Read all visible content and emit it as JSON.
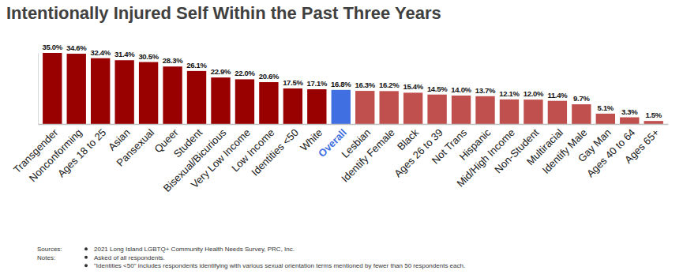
{
  "chart_data": {
    "type": "bar",
    "title": "Intentionally Injured Self Within the Past Three Years",
    "categories": [
      "Transgender",
      "Nonconforming",
      "Ages 18 to 25",
      "Asian",
      "Pansexual",
      "Queer",
      "Student",
      "Bisexual/Bicurious",
      "Very Low Income",
      "Low Income",
      "Identities <50",
      "White",
      "Overall",
      "Lesbian",
      "Identify Female",
      "Black",
      "Ages 26 to 39",
      "Not Trans",
      "Hispanic",
      "Mid/High Income",
      "Non-Student",
      "Multiracial",
      "Identify Male",
      "Gay Man",
      "Ages 40 to 64",
      "Ages 65+"
    ],
    "values": [
      35.0,
      34.6,
      32.4,
      31.4,
      30.5,
      28.3,
      26.1,
      22.9,
      22.0,
      20.6,
      17.5,
      17.1,
      16.8,
      16.3,
      16.2,
      15.4,
      14.5,
      14.0,
      13.7,
      12.1,
      12.0,
      11.4,
      9.7,
      5.1,
      3.3,
      1.5
    ],
    "value_labels": [
      "35.0%",
      "34.6%",
      "32.4%",
      "31.4%",
      "30.5%",
      "28.3%",
      "26.1%",
      "22.9%",
      "22.0%",
      "20.6%",
      "17.5%",
      "17.1%",
      "16.8%",
      "16.3%",
      "16.2%",
      "15.4%",
      "14.5%",
      "14.0%",
      "13.7%",
      "12.1%",
      "12.0%",
      "11.4%",
      "9.7%",
      "5.1%",
      "3.3%",
      "1.5%"
    ],
    "colors": [
      "#990000",
      "#990000",
      "#990000",
      "#990000",
      "#990000",
      "#990000",
      "#990000",
      "#990000",
      "#990000",
      "#990000",
      "#990000",
      "#990000",
      "#3f6fe0",
      "#c0504d",
      "#c0504d",
      "#c0504d",
      "#c0504d",
      "#c0504d",
      "#c0504d",
      "#c0504d",
      "#c0504d",
      "#c0504d",
      "#c0504d",
      "#c0504d",
      "#c0504d",
      "#c0504d"
    ],
    "ylim": [
      0,
      35
    ],
    "yticks": [],
    "data_labels": true,
    "tick_labels": "x",
    "grid": false,
    "sources_label": "Sources:",
    "sources": [
      "2021 Long Island LGBTQ+ Community Health Needs Survey, PRC, Inc."
    ],
    "notes_label": "Notes:",
    "notes": [
      "Asked of all respondents.",
      "\"Identities <50\" includes respondents identifying with various sexual orientation terms mentioned by fewer than 50 respondents each."
    ]
  }
}
